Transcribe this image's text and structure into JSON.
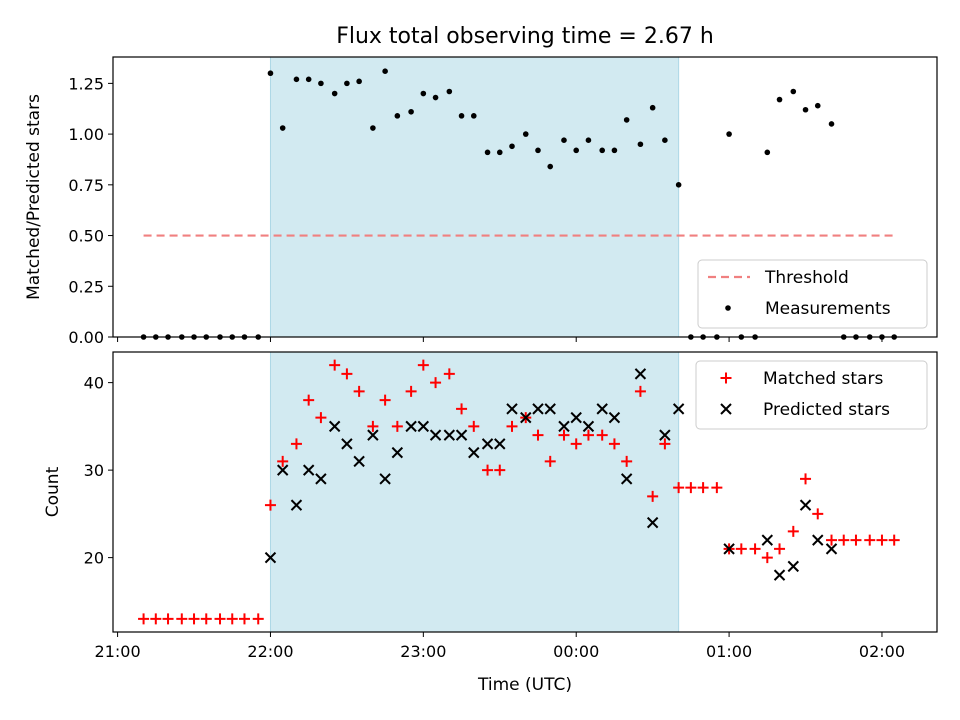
{
  "title": "Flux total observing time = 2.67 h",
  "xlabel": "Time (UTC)",
  "x_tick_labels": [
    "21:00",
    "22:00",
    "23:00",
    "00:00",
    "01:00",
    "02:00"
  ],
  "colors": {
    "shade": "#add8e6",
    "threshold": "#f08080",
    "measurement": "#000000",
    "matched": "#ff0000",
    "predicted": "#000000"
  },
  "chart_data": [
    {
      "type": "scatter",
      "ylabel": "Matched/Predicted stars",
      "ylim": [
        0,
        1.38
      ],
      "xlim_hours": [
        20.97,
        26.36
      ],
      "y_ticks": [
        0.0,
        0.25,
        0.5,
        0.75,
        1.0,
        1.25
      ],
      "y_tick_labels": [
        "0.00",
        "0.25",
        "0.50",
        "0.75",
        "1.00",
        "1.25"
      ],
      "shaded_interval_hours": [
        22.0,
        24.67
      ],
      "legend": {
        "position": "lower-right",
        "entries": [
          "Threshold",
          "Measurements"
        ]
      },
      "series": [
        {
          "name": "Threshold",
          "style": "dashed-line",
          "points": [
            [
              21.17,
              0.5
            ],
            [
              26.1,
              0.5
            ]
          ]
        },
        {
          "name": "Measurements",
          "style": "dot",
          "points": [
            [
              21.17,
              0
            ],
            [
              21.25,
              0
            ],
            [
              21.33,
              0
            ],
            [
              21.42,
              0
            ],
            [
              21.5,
              0
            ],
            [
              21.58,
              0
            ],
            [
              21.67,
              0
            ],
            [
              21.75,
              0
            ],
            [
              21.83,
              0
            ],
            [
              21.92,
              0
            ],
            [
              22.0,
              1.3
            ],
            [
              22.08,
              1.03
            ],
            [
              22.17,
              1.27
            ],
            [
              22.25,
              1.27
            ],
            [
              22.33,
              1.25
            ],
            [
              22.42,
              1.2
            ],
            [
              22.5,
              1.25
            ],
            [
              22.58,
              1.26
            ],
            [
              22.67,
              1.03
            ],
            [
              22.75,
              1.31
            ],
            [
              22.83,
              1.09
            ],
            [
              22.92,
              1.11
            ],
            [
              23.0,
              1.2
            ],
            [
              23.08,
              1.18
            ],
            [
              23.17,
              1.21
            ],
            [
              23.25,
              1.09
            ],
            [
              23.33,
              1.09
            ],
            [
              23.42,
              0.91
            ],
            [
              23.5,
              0.91
            ],
            [
              23.58,
              0.94
            ],
            [
              23.67,
              1.0
            ],
            [
              23.75,
              0.92
            ],
            [
              23.83,
              0.84
            ],
            [
              23.92,
              0.97
            ],
            [
              24.0,
              0.92
            ],
            [
              24.08,
              0.97
            ],
            [
              24.17,
              0.92
            ],
            [
              24.25,
              0.92
            ],
            [
              24.33,
              1.07
            ],
            [
              24.42,
              0.95
            ],
            [
              24.5,
              1.13
            ],
            [
              24.58,
              0.97
            ],
            [
              24.67,
              0.75
            ],
            [
              24.75,
              0
            ],
            [
              24.83,
              0
            ],
            [
              24.92,
              0
            ],
            [
              25.0,
              1.0
            ],
            [
              25.08,
              0
            ],
            [
              25.17,
              0
            ],
            [
              25.25,
              0.91
            ],
            [
              25.33,
              1.17
            ],
            [
              25.42,
              1.21
            ],
            [
              25.5,
              1.12
            ],
            [
              25.58,
              1.14
            ],
            [
              25.67,
              1.05
            ],
            [
              25.75,
              0
            ],
            [
              25.83,
              0
            ],
            [
              25.92,
              0
            ],
            [
              26.0,
              0
            ],
            [
              26.08,
              0
            ]
          ]
        }
      ]
    },
    {
      "type": "scatter",
      "ylabel": "Count",
      "ylim": [
        11.5,
        43.5
      ],
      "xlim_hours": [
        20.97,
        26.36
      ],
      "y_ticks": [
        20,
        30,
        40
      ],
      "y_tick_labels": [
        "20",
        "30",
        "40"
      ],
      "shaded_interval_hours": [
        22.0,
        24.67
      ],
      "legend": {
        "position": "top-right",
        "entries": [
          "Matched stars",
          "Predicted stars"
        ]
      },
      "series": [
        {
          "name": "Matched stars",
          "style": "plus",
          "points": [
            [
              21.17,
              13
            ],
            [
              21.25,
              13
            ],
            [
              21.33,
              13
            ],
            [
              21.42,
              13
            ],
            [
              21.5,
              13
            ],
            [
              21.58,
              13
            ],
            [
              21.67,
              13
            ],
            [
              21.75,
              13
            ],
            [
              21.83,
              13
            ],
            [
              21.92,
              13
            ],
            [
              22.0,
              26
            ],
            [
              22.08,
              31
            ],
            [
              22.17,
              33
            ],
            [
              22.25,
              38
            ],
            [
              22.33,
              36
            ],
            [
              22.42,
              42
            ],
            [
              22.5,
              41
            ],
            [
              22.58,
              39
            ],
            [
              22.67,
              35
            ],
            [
              22.75,
              38
            ],
            [
              22.83,
              35
            ],
            [
              22.92,
              39
            ],
            [
              23.0,
              42
            ],
            [
              23.08,
              40
            ],
            [
              23.17,
              41
            ],
            [
              23.25,
              37
            ],
            [
              23.33,
              35
            ],
            [
              23.42,
              30
            ],
            [
              23.5,
              30
            ],
            [
              23.58,
              35
            ],
            [
              23.67,
              36
            ],
            [
              23.75,
              34
            ],
            [
              23.83,
              31
            ],
            [
              23.92,
              34
            ],
            [
              24.0,
              33
            ],
            [
              24.08,
              34
            ],
            [
              24.17,
              34
            ],
            [
              24.25,
              33
            ],
            [
              24.33,
              31
            ],
            [
              24.42,
              39
            ],
            [
              24.5,
              27
            ],
            [
              24.58,
              33
            ],
            [
              24.67,
              28
            ],
            [
              24.75,
              28
            ],
            [
              24.83,
              28
            ],
            [
              24.92,
              28
            ],
            [
              25.0,
              21
            ],
            [
              25.08,
              21
            ],
            [
              25.17,
              21
            ],
            [
              25.25,
              20
            ],
            [
              25.33,
              21
            ],
            [
              25.42,
              23
            ],
            [
              25.5,
              29
            ],
            [
              25.58,
              25
            ],
            [
              25.67,
              22
            ],
            [
              25.75,
              22
            ],
            [
              25.83,
              22
            ],
            [
              25.92,
              22
            ],
            [
              26.0,
              22
            ],
            [
              26.08,
              22
            ]
          ]
        },
        {
          "name": "Predicted stars",
          "style": "x",
          "points": [
            [
              22.0,
              20
            ],
            [
              22.08,
              30
            ],
            [
              22.17,
              26
            ],
            [
              22.25,
              30
            ],
            [
              22.33,
              29
            ],
            [
              22.42,
              35
            ],
            [
              22.5,
              33
            ],
            [
              22.58,
              31
            ],
            [
              22.67,
              34
            ],
            [
              22.75,
              29
            ],
            [
              22.83,
              32
            ],
            [
              22.92,
              35
            ],
            [
              23.0,
              35
            ],
            [
              23.08,
              34
            ],
            [
              23.17,
              34
            ],
            [
              23.25,
              34
            ],
            [
              23.33,
              32
            ],
            [
              23.42,
              33
            ],
            [
              23.5,
              33
            ],
            [
              23.58,
              37
            ],
            [
              23.67,
              36
            ],
            [
              23.75,
              37
            ],
            [
              23.83,
              37
            ],
            [
              23.92,
              35
            ],
            [
              24.0,
              36
            ],
            [
              24.08,
              35
            ],
            [
              24.17,
              37
            ],
            [
              24.25,
              36
            ],
            [
              24.33,
              29
            ],
            [
              24.42,
              41
            ],
            [
              24.5,
              24
            ],
            [
              24.58,
              34
            ],
            [
              24.67,
              37
            ],
            [
              25.0,
              21
            ],
            [
              25.25,
              22
            ],
            [
              25.33,
              18
            ],
            [
              25.42,
              19
            ],
            [
              25.5,
              26
            ],
            [
              25.58,
              22
            ],
            [
              25.67,
              21
            ]
          ]
        }
      ]
    }
  ]
}
